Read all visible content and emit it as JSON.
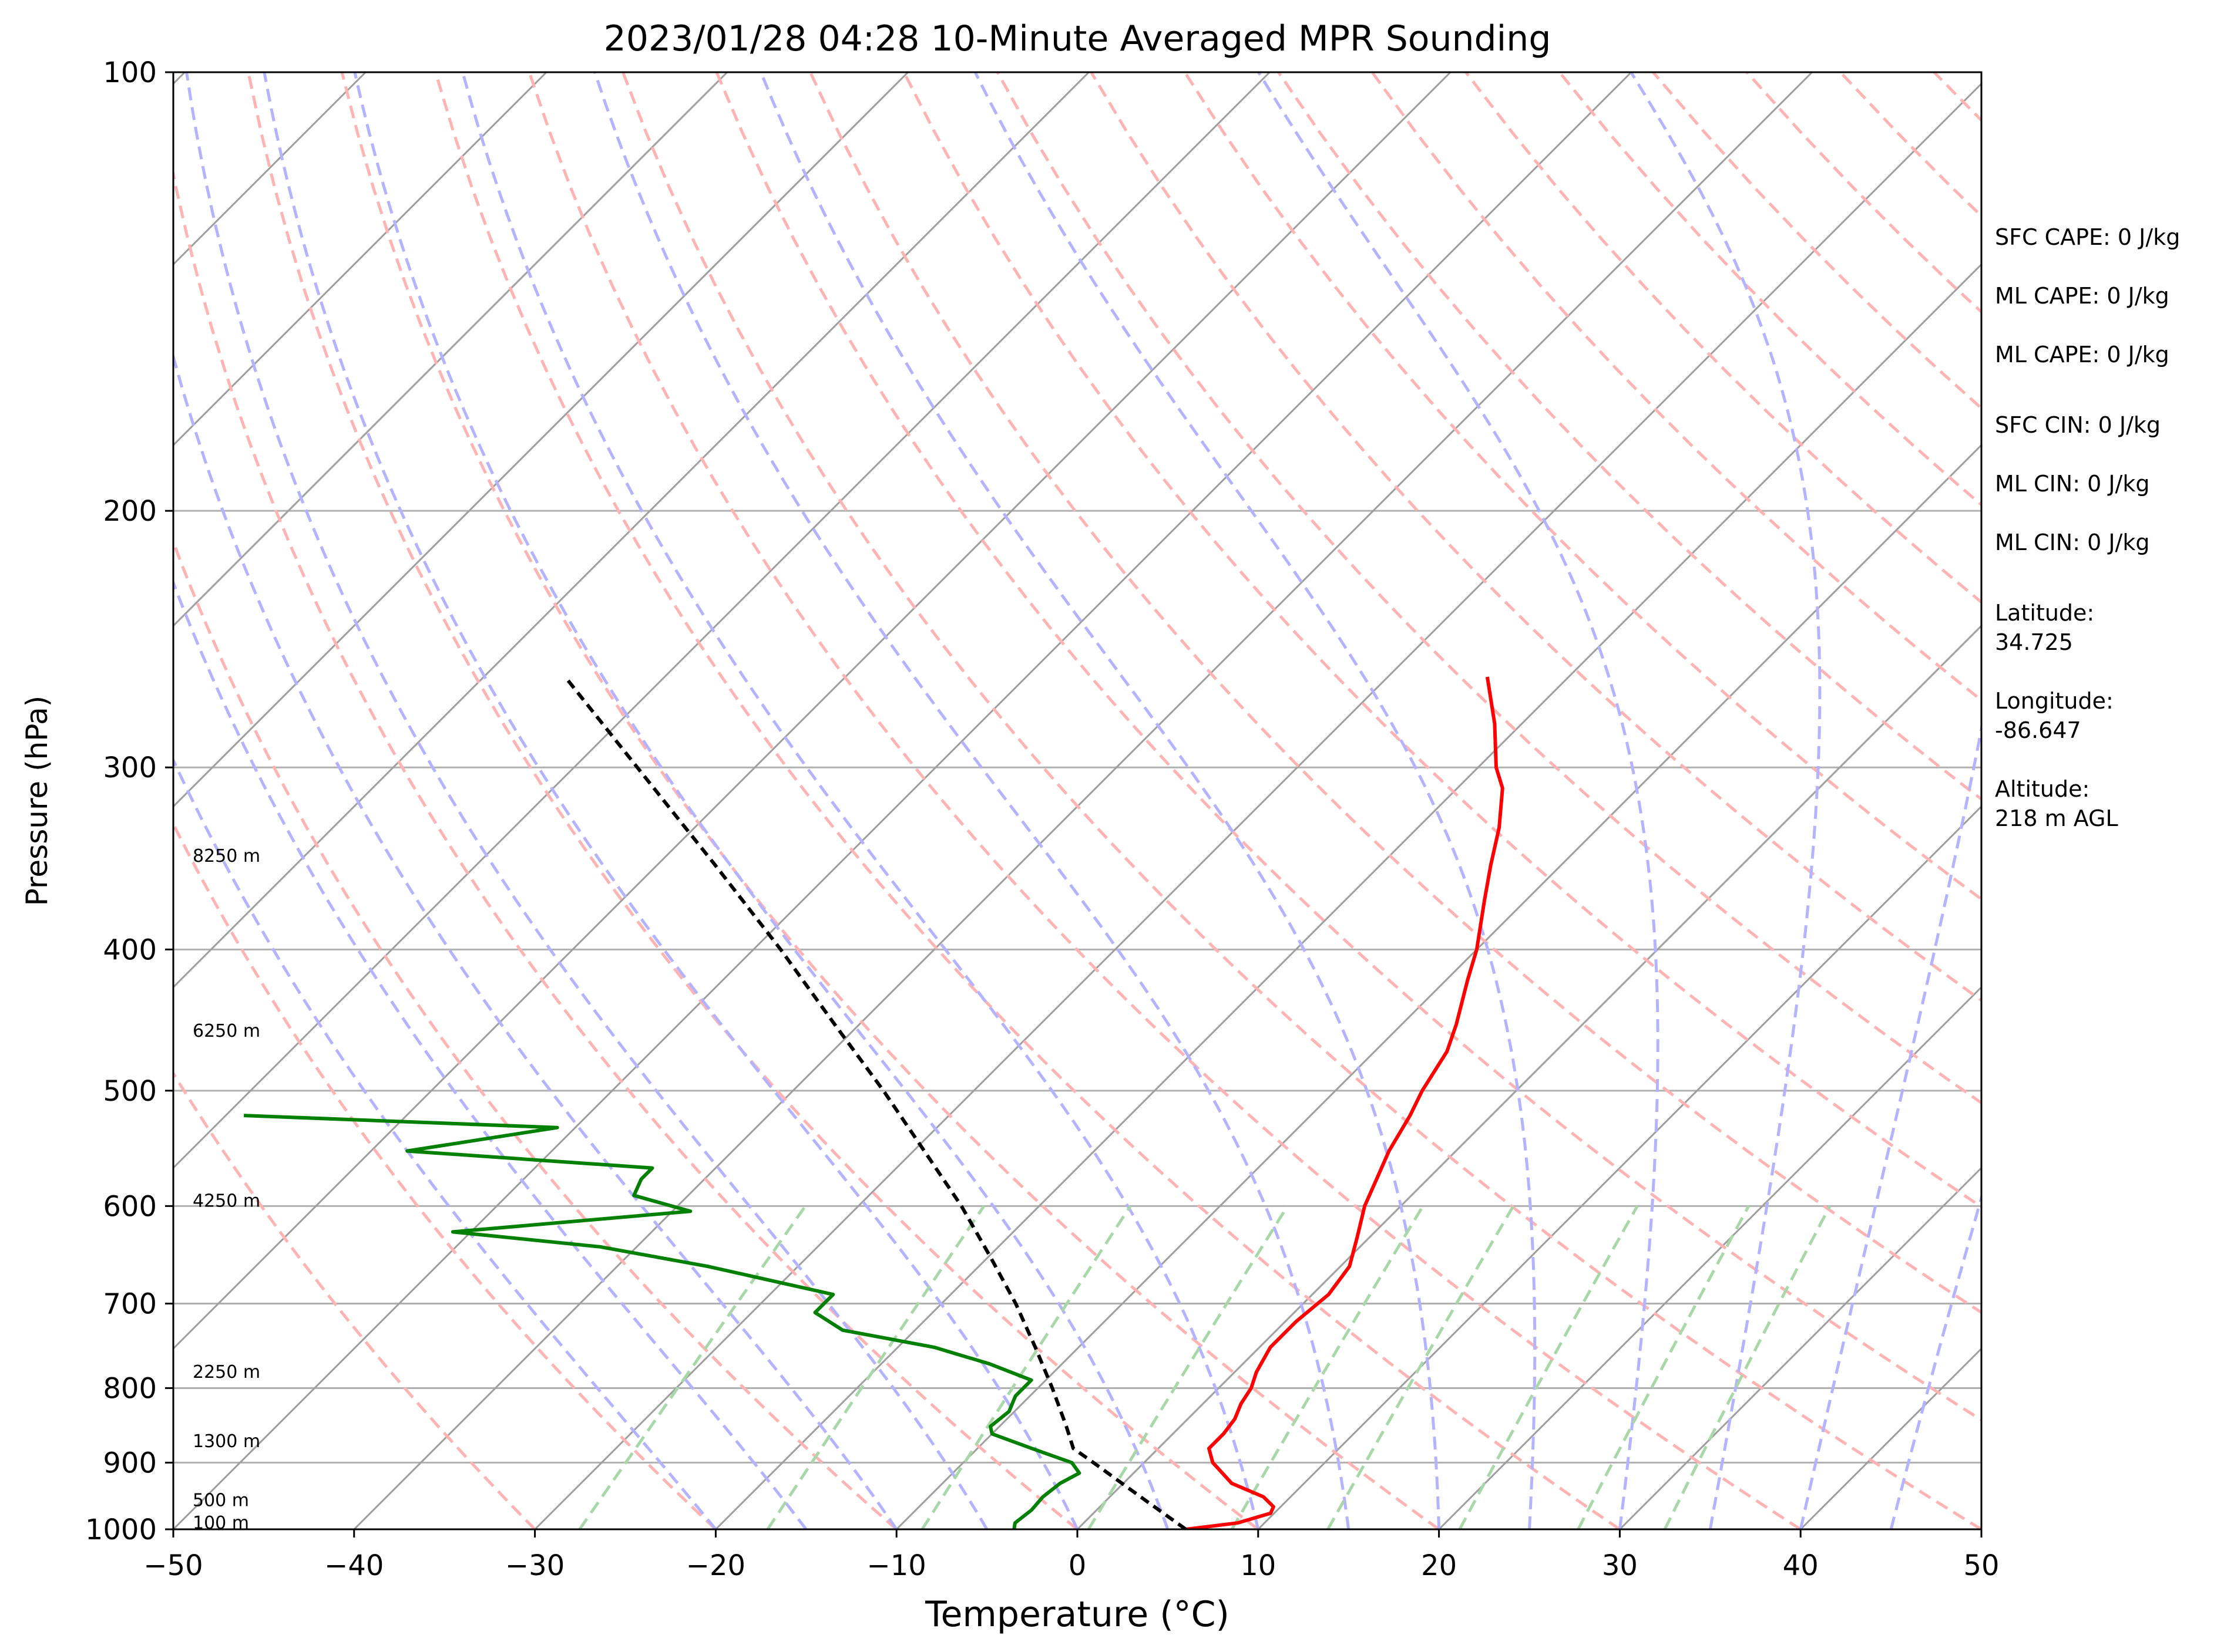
{
  "chart_data": {
    "type": "line",
    "subtype": "skew-t log-p sounding",
    "title": "2023/01/28 04:28 10-Minute Averaged MPR Sounding",
    "xlabel": "Temperature (°C)",
    "ylabel": "Pressure (hPa)",
    "xlim": [
      -50,
      50
    ],
    "ylim": [
      1000,
      100
    ],
    "y_scale": "log",
    "x_ticks": [
      -50,
      -40,
      -30,
      -20,
      -10,
      0,
      10,
      20,
      30,
      40,
      50
    ],
    "x_tick_labels": [
      "−50",
      "−40",
      "−30",
      "−20",
      "−10",
      "0",
      "10",
      "20",
      "30",
      "40",
      "50"
    ],
    "y_ticks": [
      1000,
      900,
      800,
      700,
      600,
      500,
      400,
      300,
      200,
      100
    ],
    "y_tick_labels": [
      "1000",
      "900",
      "800",
      "700",
      "600",
      "500",
      "400",
      "300",
      "200",
      "100"
    ],
    "grid": true,
    "isotherm_skew_degrees": 45,
    "colors": {
      "temperature": "#ff0000",
      "dewpoint": "#008000",
      "parcel": "#000000",
      "dry_adiabats": "#ffb3b3",
      "moist_adiabats": "#b3b3ff",
      "mixing_ratio": "#a8d8a8",
      "isotherms": "#9e9e9e",
      "isobars": "#b0b0b0"
    },
    "series": [
      {
        "name": "temperature",
        "points": [
          [
            1000,
            6.0
          ],
          [
            990,
            8.5
          ],
          [
            975,
            9.8
          ],
          [
            965,
            9.6
          ],
          [
            950,
            8.5
          ],
          [
            930,
            6.0
          ],
          [
            900,
            3.8
          ],
          [
            880,
            2.8
          ],
          [
            860,
            2.8
          ],
          [
            840,
            2.6
          ],
          [
            820,
            2.1
          ],
          [
            800,
            1.8
          ],
          [
            780,
            1.2
          ],
          [
            750,
            0.6
          ],
          [
            720,
            0.6
          ],
          [
            690,
            0.9
          ],
          [
            660,
            0.5
          ],
          [
            630,
            -0.7
          ],
          [
            600,
            -2.0
          ],
          [
            570,
            -3.0
          ],
          [
            550,
            -3.7
          ],
          [
            520,
            -4.5
          ],
          [
            500,
            -5.2
          ],
          [
            470,
            -6.0
          ],
          [
            450,
            -7.0
          ],
          [
            420,
            -8.8
          ],
          [
            400,
            -10.0
          ],
          [
            370,
            -12.3
          ],
          [
            350,
            -13.9
          ],
          [
            330,
            -15.5
          ],
          [
            310,
            -17.5
          ],
          [
            300,
            -19.0
          ],
          [
            280,
            -21.5
          ],
          [
            260,
            -24.5
          ]
        ]
      },
      {
        "name": "dewpoint",
        "points": [
          [
            1000,
            -3.5
          ],
          [
            990,
            -3.8
          ],
          [
            970,
            -3.6
          ],
          [
            950,
            -3.7
          ],
          [
            930,
            -3.5
          ],
          [
            915,
            -3.0
          ],
          [
            900,
            -4.0
          ],
          [
            880,
            -7.0
          ],
          [
            860,
            -10.0
          ],
          [
            850,
            -10.5
          ],
          [
            830,
            -10.3
          ],
          [
            810,
            -10.8
          ],
          [
            790,
            -10.8
          ],
          [
            770,
            -14.0
          ],
          [
            750,
            -18.0
          ],
          [
            730,
            -24.0
          ],
          [
            710,
            -26.5
          ],
          [
            690,
            -26.5
          ],
          [
            660,
            -35.0
          ],
          [
            640,
            -42.0
          ],
          [
            625,
            -51.0
          ],
          [
            605,
            -39.0
          ],
          [
            590,
            -43.0
          ],
          [
            575,
            -43.5
          ],
          [
            565,
            -43.5
          ],
          [
            550,
            -58.0
          ],
          [
            530,
            -51.0
          ],
          [
            520,
            -69.0
          ]
        ]
      },
      {
        "name": "parcel",
        "points": [
          [
            1000,
            6.0
          ],
          [
            950,
            1.7
          ],
          [
            900,
            -2.8
          ],
          [
            880,
            -4.7
          ],
          [
            850,
            -6.3
          ],
          [
            800,
            -9.2
          ],
          [
            750,
            -12.4
          ],
          [
            700,
            -15.9
          ],
          [
            650,
            -19.9
          ],
          [
            600,
            -24.3
          ],
          [
            550,
            -29.4
          ],
          [
            500,
            -35.0
          ],
          [
            450,
            -41.4
          ],
          [
            400,
            -48.5
          ],
          [
            350,
            -56.8
          ],
          [
            300,
            -66.5
          ],
          [
            260,
            -75.5
          ]
        ]
      }
    ],
    "height_markers": [
      {
        "pressure": 990,
        "label": "100 m"
      },
      {
        "pressure": 955,
        "label": "500 m"
      },
      {
        "pressure": 870,
        "label": "1300 m"
      },
      {
        "pressure": 780,
        "label": "2250 m"
      },
      {
        "pressure": 595,
        "label": "4250 m"
      },
      {
        "pressure": 455,
        "label": "6250 m"
      },
      {
        "pressure": 345,
        "label": "8250 m"
      }
    ],
    "annotations": [
      "SFC CAPE: 0 J/kg",
      "ML CAPE: 0 J/kg",
      "ML CAPE: 0 J/kg",
      "SFC CIN: 0 J/kg",
      "ML CIN: 0 J/kg",
      "ML CIN: 0 J/kg",
      "Latitude:",
      "34.725",
      "Longitude:",
      "-86.647",
      "Altitude:",
      "218 m AGL"
    ]
  }
}
